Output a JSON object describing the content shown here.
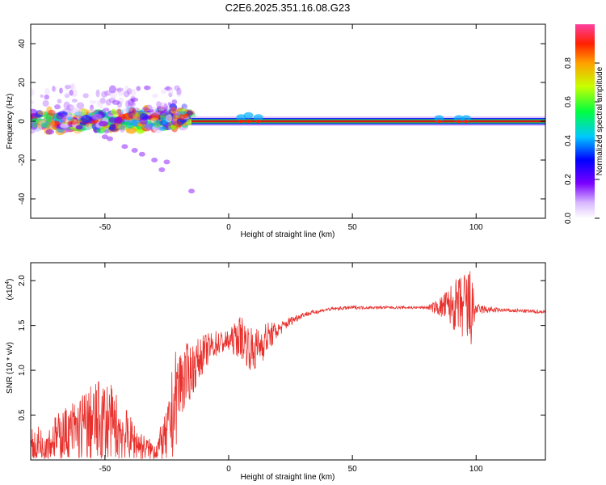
{
  "title": "C2E6.2025.351.16.08.G23",
  "colors": {
    "snr_line": "#e8302c",
    "axis": "#000000",
    "carrier": "#d7191c"
  },
  "chart_data": [
    {
      "type": "heatmap",
      "name": "spectrogram",
      "xlabel": "Height of straight line (km)",
      "ylabel": "Frequency (Hz)",
      "xlim": [
        -80,
        128
      ],
      "ylim": [
        -50,
        50
      ],
      "xticks": [
        "-50",
        "0",
        "50",
        "100"
      ],
      "xtick_values": [
        -50,
        0,
        50,
        100
      ],
      "yticks": [
        "40",
        "20",
        "0",
        "-20",
        "-40"
      ],
      "ytick_values": [
        40,
        20,
        0,
        -20,
        -40
      ],
      "carrier_frequency_hz": 0,
      "carrier_band": [
        -15,
        128
      ],
      "colorbar": {
        "label": "Normalized spectral amplitude",
        "range": [
          0,
          1
        ],
        "ticks": [
          "0.0",
          "0.2",
          "0.4",
          "0.6",
          "0.8"
        ],
        "tick_values": [
          0.0,
          0.2,
          0.4,
          0.6,
          0.8
        ]
      }
    },
    {
      "type": "line",
      "name": "snr",
      "xlabel": "Height of straight line (km)",
      "ylabel": "SNR (10 * v/v)",
      "y_multiplier": "(x10",
      "y_multiplier_exp": "4",
      "y_multiplier_close": ")",
      "xlim": [
        -80,
        128
      ],
      "ylim": [
        0,
        2.2
      ],
      "xticks": [
        "-50",
        "0",
        "50",
        "100"
      ],
      "xtick_values": [
        -50,
        0,
        50,
        100
      ],
      "yticks": [
        "2.0",
        "1.5",
        "1.0",
        "0.5"
      ],
      "ytick_values": [
        2.0,
        1.5,
        1.0,
        0.5
      ],
      "envelope_x": [
        -80,
        -70,
        -60,
        -50,
        -45,
        -40,
        -35,
        -30,
        -25,
        -22,
        -20,
        -15,
        -10,
        -5,
        0,
        5,
        10,
        15,
        20,
        25,
        30,
        40,
        50,
        60,
        70,
        80,
        85,
        90,
        95,
        97,
        100,
        110,
        120,
        128
      ],
      "envelope_y": [
        0.15,
        0.25,
        0.35,
        0.45,
        0.35,
        0.25,
        0.15,
        0.1,
        0.25,
        0.6,
        0.85,
        1.0,
        1.2,
        1.3,
        1.32,
        1.38,
        1.2,
        1.35,
        1.45,
        1.55,
        1.62,
        1.68,
        1.7,
        1.7,
        1.7,
        1.7,
        1.7,
        1.72,
        1.7,
        1.65,
        1.68,
        1.67,
        1.66,
        1.65
      ],
      "envelope_noise": [
        0.2,
        0.25,
        0.4,
        0.5,
        0.4,
        0.25,
        0.15,
        0.1,
        0.3,
        0.6,
        0.45,
        0.3,
        0.2,
        0.15,
        0.12,
        0.25,
        0.25,
        0.2,
        0.08,
        0.05,
        0.03,
        0.02,
        0.02,
        0.015,
        0.015,
        0.015,
        0.1,
        0.25,
        0.4,
        0.6,
        0.06,
        0.02,
        0.02,
        0.02
      ]
    }
  ]
}
